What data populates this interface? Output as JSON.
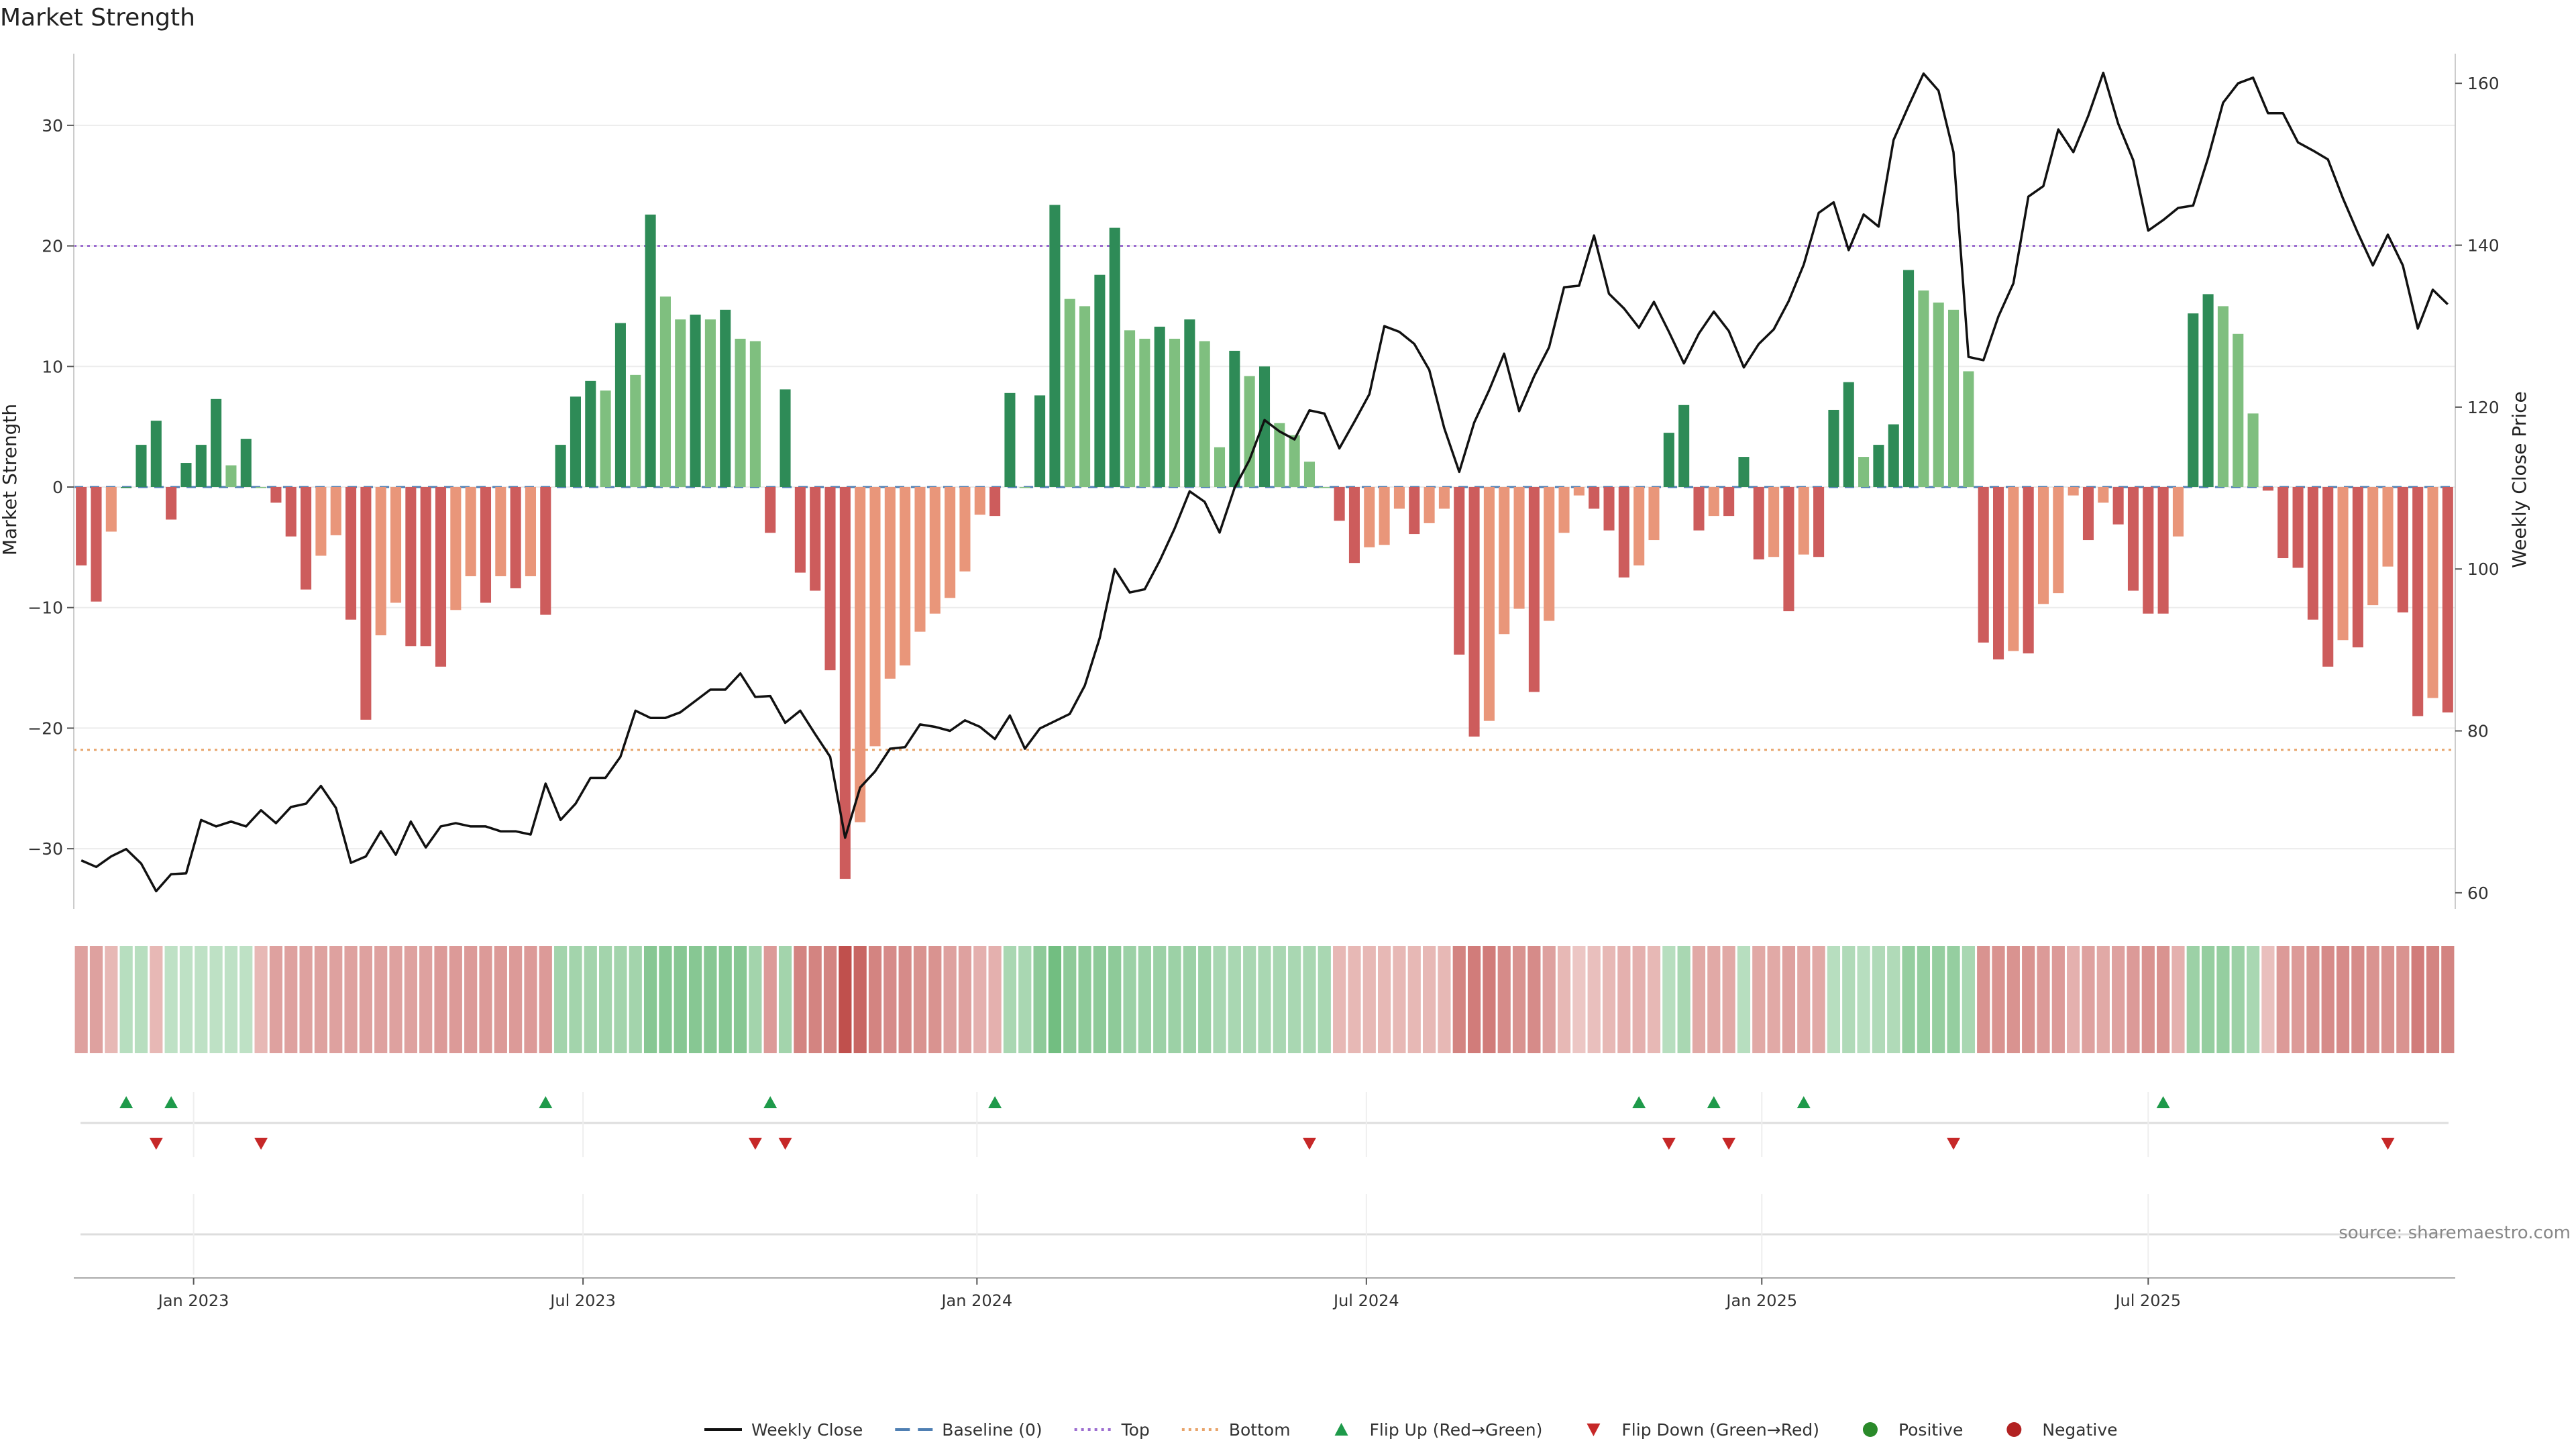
{
  "chart_data": {
    "type": "bar",
    "title": "Market Strength",
    "ylabel": "Market Strength",
    "ylabel_right": "Weekly Close Price",
    "ylim": [
      -35.0,
      35.5
    ],
    "ylim_right": [
      58.0,
      163.0
    ],
    "yticks": [
      30,
      20,
      10,
      0,
      -10,
      -20,
      -30
    ],
    "yticks_right": [
      160,
      140,
      120,
      100,
      80,
      60
    ],
    "threshold_top": 20,
    "threshold_bottom": -21.8,
    "xticks": [
      {
        "label": "Jan 2023",
        "week": 7.5
      },
      {
        "label": "Jul 2023",
        "week": 33.5
      },
      {
        "label": "Jan 2024",
        "week": 59.8
      },
      {
        "label": "Jul 2024",
        "week": 85.8
      },
      {
        "label": "Jan 2025",
        "week": 112.2
      },
      {
        "label": "Jul 2025",
        "week": 138.0
      }
    ],
    "strength": [
      -6.5,
      -9.5,
      -3.7,
      0,
      3.5,
      5.5,
      -2.7,
      2.0,
      3.5,
      7.3,
      1.8,
      4.0,
      0,
      -1.3,
      -4.1,
      -8.5,
      -5.7,
      -4.0,
      -11.0,
      -19.3,
      -12.3,
      -9.6,
      -13.2,
      -13.2,
      -14.9,
      -10.2,
      -7.4,
      -9.6,
      -7.4,
      -8.4,
      -7.4,
      -10.6,
      3.5,
      7.5,
      8.8,
      8.0,
      13.6,
      9.3,
      22.6,
      15.8,
      13.9,
      14.3,
      13.9,
      14.7,
      12.3,
      12.1,
      -3.8,
      8.1,
      -7.1,
      -8.6,
      -15.2,
      -32.5,
      -27.8,
      -21.5,
      -15.9,
      -14.8,
      -12.0,
      -10.5,
      -9.2,
      -7.0,
      -2.3,
      -2.4,
      7.8,
      0,
      7.6,
      23.4,
      15.6,
      15.0,
      17.6,
      21.5,
      13.0,
      12.3,
      13.3,
      12.3,
      13.9,
      12.1,
      3.3,
      11.3,
      9.2,
      10.0,
      5.3,
      4.3,
      2.1,
      0,
      -2.8,
      -6.3,
      -5.0,
      -4.8,
      -1.8,
      -3.9,
      -3.0,
      -1.8,
      -13.9,
      -20.7,
      -19.4,
      -12.2,
      -10.1,
      -17.0,
      -11.1,
      -3.8,
      -0.7,
      -1.8,
      -3.6,
      -7.5,
      -6.5,
      -4.4,
      4.5,
      6.8,
      -3.6,
      -2.4,
      -2.4,
      2.5,
      -6.0,
      -5.8,
      -10.3,
      -5.6,
      -5.8,
      6.4,
      8.7,
      2.5,
      3.5,
      5.2,
      18.0,
      16.3,
      15.3,
      14.7,
      9.6,
      -12.9,
      -14.3,
      -13.6,
      -13.8,
      -9.7,
      -8.8,
      -0.7,
      -4.4,
      -1.3,
      -3.1,
      -8.6,
      -10.5,
      -10.5,
      -4.1,
      14.4,
      16.0,
      15.0,
      12.7,
      6.1,
      -0.3,
      -5.9,
      -6.7,
      -11.0,
      -14.9,
      -12.7,
      -13.3,
      -9.8,
      -6.6,
      -10.4,
      -19.0,
      -17.5,
      -18.7
    ],
    "price": [
      64.0,
      63.2,
      64.5,
      65.4,
      63.6,
      60.2,
      62.3,
      62.4,
      69.0,
      68.2,
      68.8,
      68.2,
      70.2,
      68.6,
      70.6,
      71.0,
      73.2,
      70.5,
      63.7,
      64.5,
      67.6,
      64.7,
      68.8,
      65.6,
      68.2,
      68.6,
      68.2,
      68.2,
      67.6,
      67.6,
      67.2,
      73.5,
      69.0,
      71.0,
      74.2,
      74.2,
      76.8,
      82.5,
      81.6,
      81.6,
      82.3,
      83.7,
      85.1,
      85.1,
      87.1,
      84.2,
      84.3,
      81.0,
      82.5,
      79.6,
      76.8,
      66.8,
      73.0,
      75.0,
      77.8,
      78.0,
      80.8,
      80.5,
      80.0,
      81.3,
      80.5,
      79.0,
      81.9,
      77.8,
      80.3,
      81.2,
      82.1,
      85.6,
      91.5,
      100.0,
      97.1,
      97.5,
      101.0,
      105.0,
      109.6,
      108.3,
      104.5,
      110.0,
      113.5,
      118.4,
      117.0,
      116.0,
      119.6,
      119.2,
      114.9,
      118.2,
      121.6,
      130.0,
      129.3,
      127.8,
      124.6,
      117.4,
      112.0,
      118.1,
      122.1,
      126.6,
      119.5,
      123.8,
      127.4,
      134.8,
      135.0,
      141.2,
      134.0,
      132.2,
      129.8,
      133.0,
      129.3,
      125.4,
      129.1,
      131.8,
      129.4,
      124.9,
      127.8,
      129.6,
      133.1,
      137.6,
      144.0,
      145.3,
      139.4,
      143.8,
      142.3,
      153.0,
      157.2,
      161.2,
      159.1,
      151.5,
      126.2,
      125.8,
      131.2,
      135.3,
      146.0,
      147.3,
      154.3,
      151.5,
      156.0,
      161.3,
      155.0,
      150.5,
      141.8,
      143.1,
      144.6,
      144.9,
      150.8,
      157.6,
      160.0,
      160.7,
      156.3,
      156.3,
      152.7,
      151.7,
      150.6,
      145.8,
      141.5,
      137.5,
      141.3,
      137.5,
      129.7,
      134.5,
      132.7
    ]
  },
  "heat_row": [
    -0.45,
    -0.45,
    -0.3,
    0.35,
    0.35,
    -0.3,
    0.3,
    0.3,
    0.3,
    0.3,
    0.3,
    0.3,
    -0.3,
    -0.45,
    -0.45,
    -0.45,
    -0.45,
    -0.45,
    -0.45,
    -0.45,
    -0.45,
    -0.45,
    -0.45,
    -0.45,
    -0.5,
    -0.5,
    -0.5,
    -0.5,
    -0.5,
    -0.5,
    -0.5,
    -0.5,
    0.5,
    0.5,
    0.5,
    0.5,
    0.5,
    0.5,
    0.7,
    0.7,
    0.7,
    0.7,
    0.7,
    0.7,
    0.7,
    0.5,
    -0.5,
    0.5,
    -0.65,
    -0.65,
    -0.65,
    -1.0,
    -0.85,
    -0.65,
    -0.6,
    -0.6,
    -0.55,
    -0.55,
    -0.45,
    -0.45,
    -0.35,
    -0.35,
    0.45,
    0.45,
    0.65,
    0.85,
    0.65,
    0.65,
    0.65,
    0.65,
    0.55,
    0.55,
    0.55,
    0.55,
    0.55,
    0.55,
    0.45,
    0.45,
    0.45,
    0.45,
    0.45,
    0.45,
    0.45,
    0.45,
    -0.3,
    -0.3,
    -0.3,
    -0.3,
    -0.3,
    -0.3,
    -0.3,
    -0.3,
    -0.65,
    -0.7,
    -0.7,
    -0.6,
    -0.55,
    -0.6,
    -0.45,
    -0.3,
    -0.2,
    -0.25,
    -0.3,
    -0.35,
    -0.35,
    -0.3,
    0.35,
    0.45,
    -0.4,
    -0.4,
    -0.4,
    0.35,
    -0.4,
    -0.4,
    -0.45,
    -0.4,
    -0.4,
    0.35,
    0.4,
    0.35,
    0.4,
    0.4,
    0.6,
    0.6,
    0.6,
    0.6,
    0.45,
    -0.55,
    -0.55,
    -0.55,
    -0.55,
    -0.5,
    -0.5,
    -0.35,
    -0.45,
    -0.4,
    -0.45,
    -0.5,
    -0.55,
    -0.55,
    -0.35,
    0.55,
    0.6,
    0.6,
    0.55,
    0.45,
    -0.25,
    -0.5,
    -0.5,
    -0.55,
    -0.6,
    -0.6,
    -0.6,
    -0.55,
    -0.55,
    -0.55,
    -0.7,
    -0.65,
    -0.65
  ],
  "flip_up_weeks": [
    3,
    6,
    31,
    46,
    61,
    104,
    109,
    115,
    139
  ],
  "flip_down_weeks": [
    5,
    12,
    45,
    47,
    82,
    106,
    110,
    125,
    154
  ],
  "legend": [
    {
      "label": "Weekly Close",
      "kind": "line",
      "color": "#111111"
    },
    {
      "label": "Baseline (0)",
      "kind": "dash",
      "color": "#4f7fb3"
    },
    {
      "label": "Top",
      "kind": "dot",
      "color": "#9c6dd0"
    },
    {
      "label": "Bottom",
      "kind": "dot",
      "color": "#e8a46a"
    },
    {
      "label": "Flip Up (Red→Green)",
      "kind": "tri-up",
      "color": "#1e9a4a"
    },
    {
      "label": "Flip Down (Green→Red)",
      "kind": "tri-down",
      "color": "#c62828"
    },
    {
      "label": "Positive",
      "kind": "circle",
      "color": "#2a8a2a"
    },
    {
      "label": "Negative",
      "kind": "circle",
      "color": "#b22222"
    }
  ],
  "source": "source: sharemaestro.com",
  "colors": {
    "pos_strong": "#2e8b57",
    "pos_weak": "#7fbf7f",
    "neg_strong": "#cd5c5c",
    "neg_weak": "#e9967a",
    "price": "#111111",
    "grid": "#ececec"
  }
}
